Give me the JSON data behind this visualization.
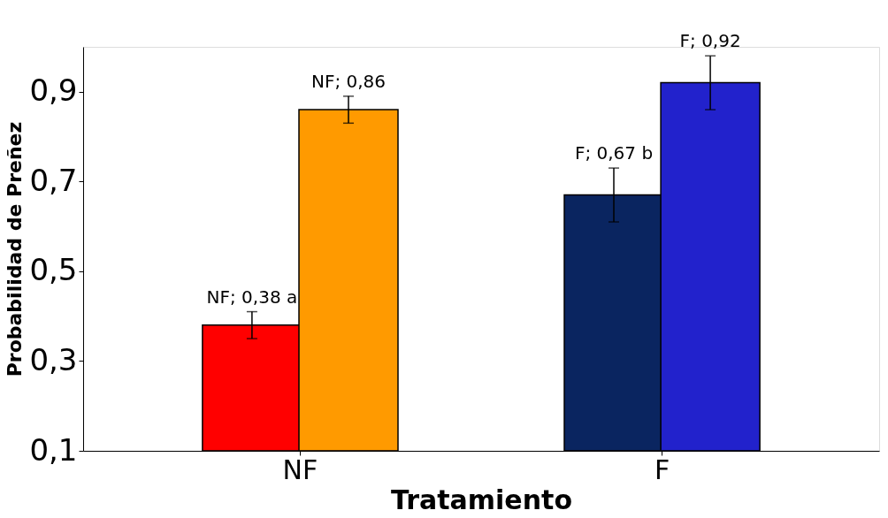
{
  "chart_data": {
    "type": "bar",
    "xlabel": "Tratamiento",
    "ylabel": "Probabilidad de Preñez",
    "categories": [
      "NF",
      "F"
    ],
    "series": [
      {
        "colors": [
          "#ff0000",
          "#0a2560"
        ],
        "values": [
          0.38,
          0.67
        ],
        "errors": [
          0.03,
          0.06
        ],
        "value_labels": [
          "NF; 0,38 a",
          "F; 0,67 b"
        ]
      },
      {
        "colors": [
          "#ff9a00",
          "#2222cc"
        ],
        "values": [
          0.86,
          0.92
        ],
        "errors": [
          0.03,
          0.06
        ],
        "value_labels": [
          "NF; 0,86",
          "F; 0,92"
        ]
      }
    ],
    "ylim": [
      0.1,
      1.0
    ],
    "yticks": [
      {
        "value": 0.1,
        "label": "0,1"
      },
      {
        "value": 0.3,
        "label": "0,3"
      },
      {
        "value": 0.5,
        "label": "0,5"
      },
      {
        "value": 0.7,
        "label": "0,7"
      },
      {
        "value": 0.9,
        "label": "0,9"
      }
    ],
    "grid": false,
    "legend": false
  }
}
